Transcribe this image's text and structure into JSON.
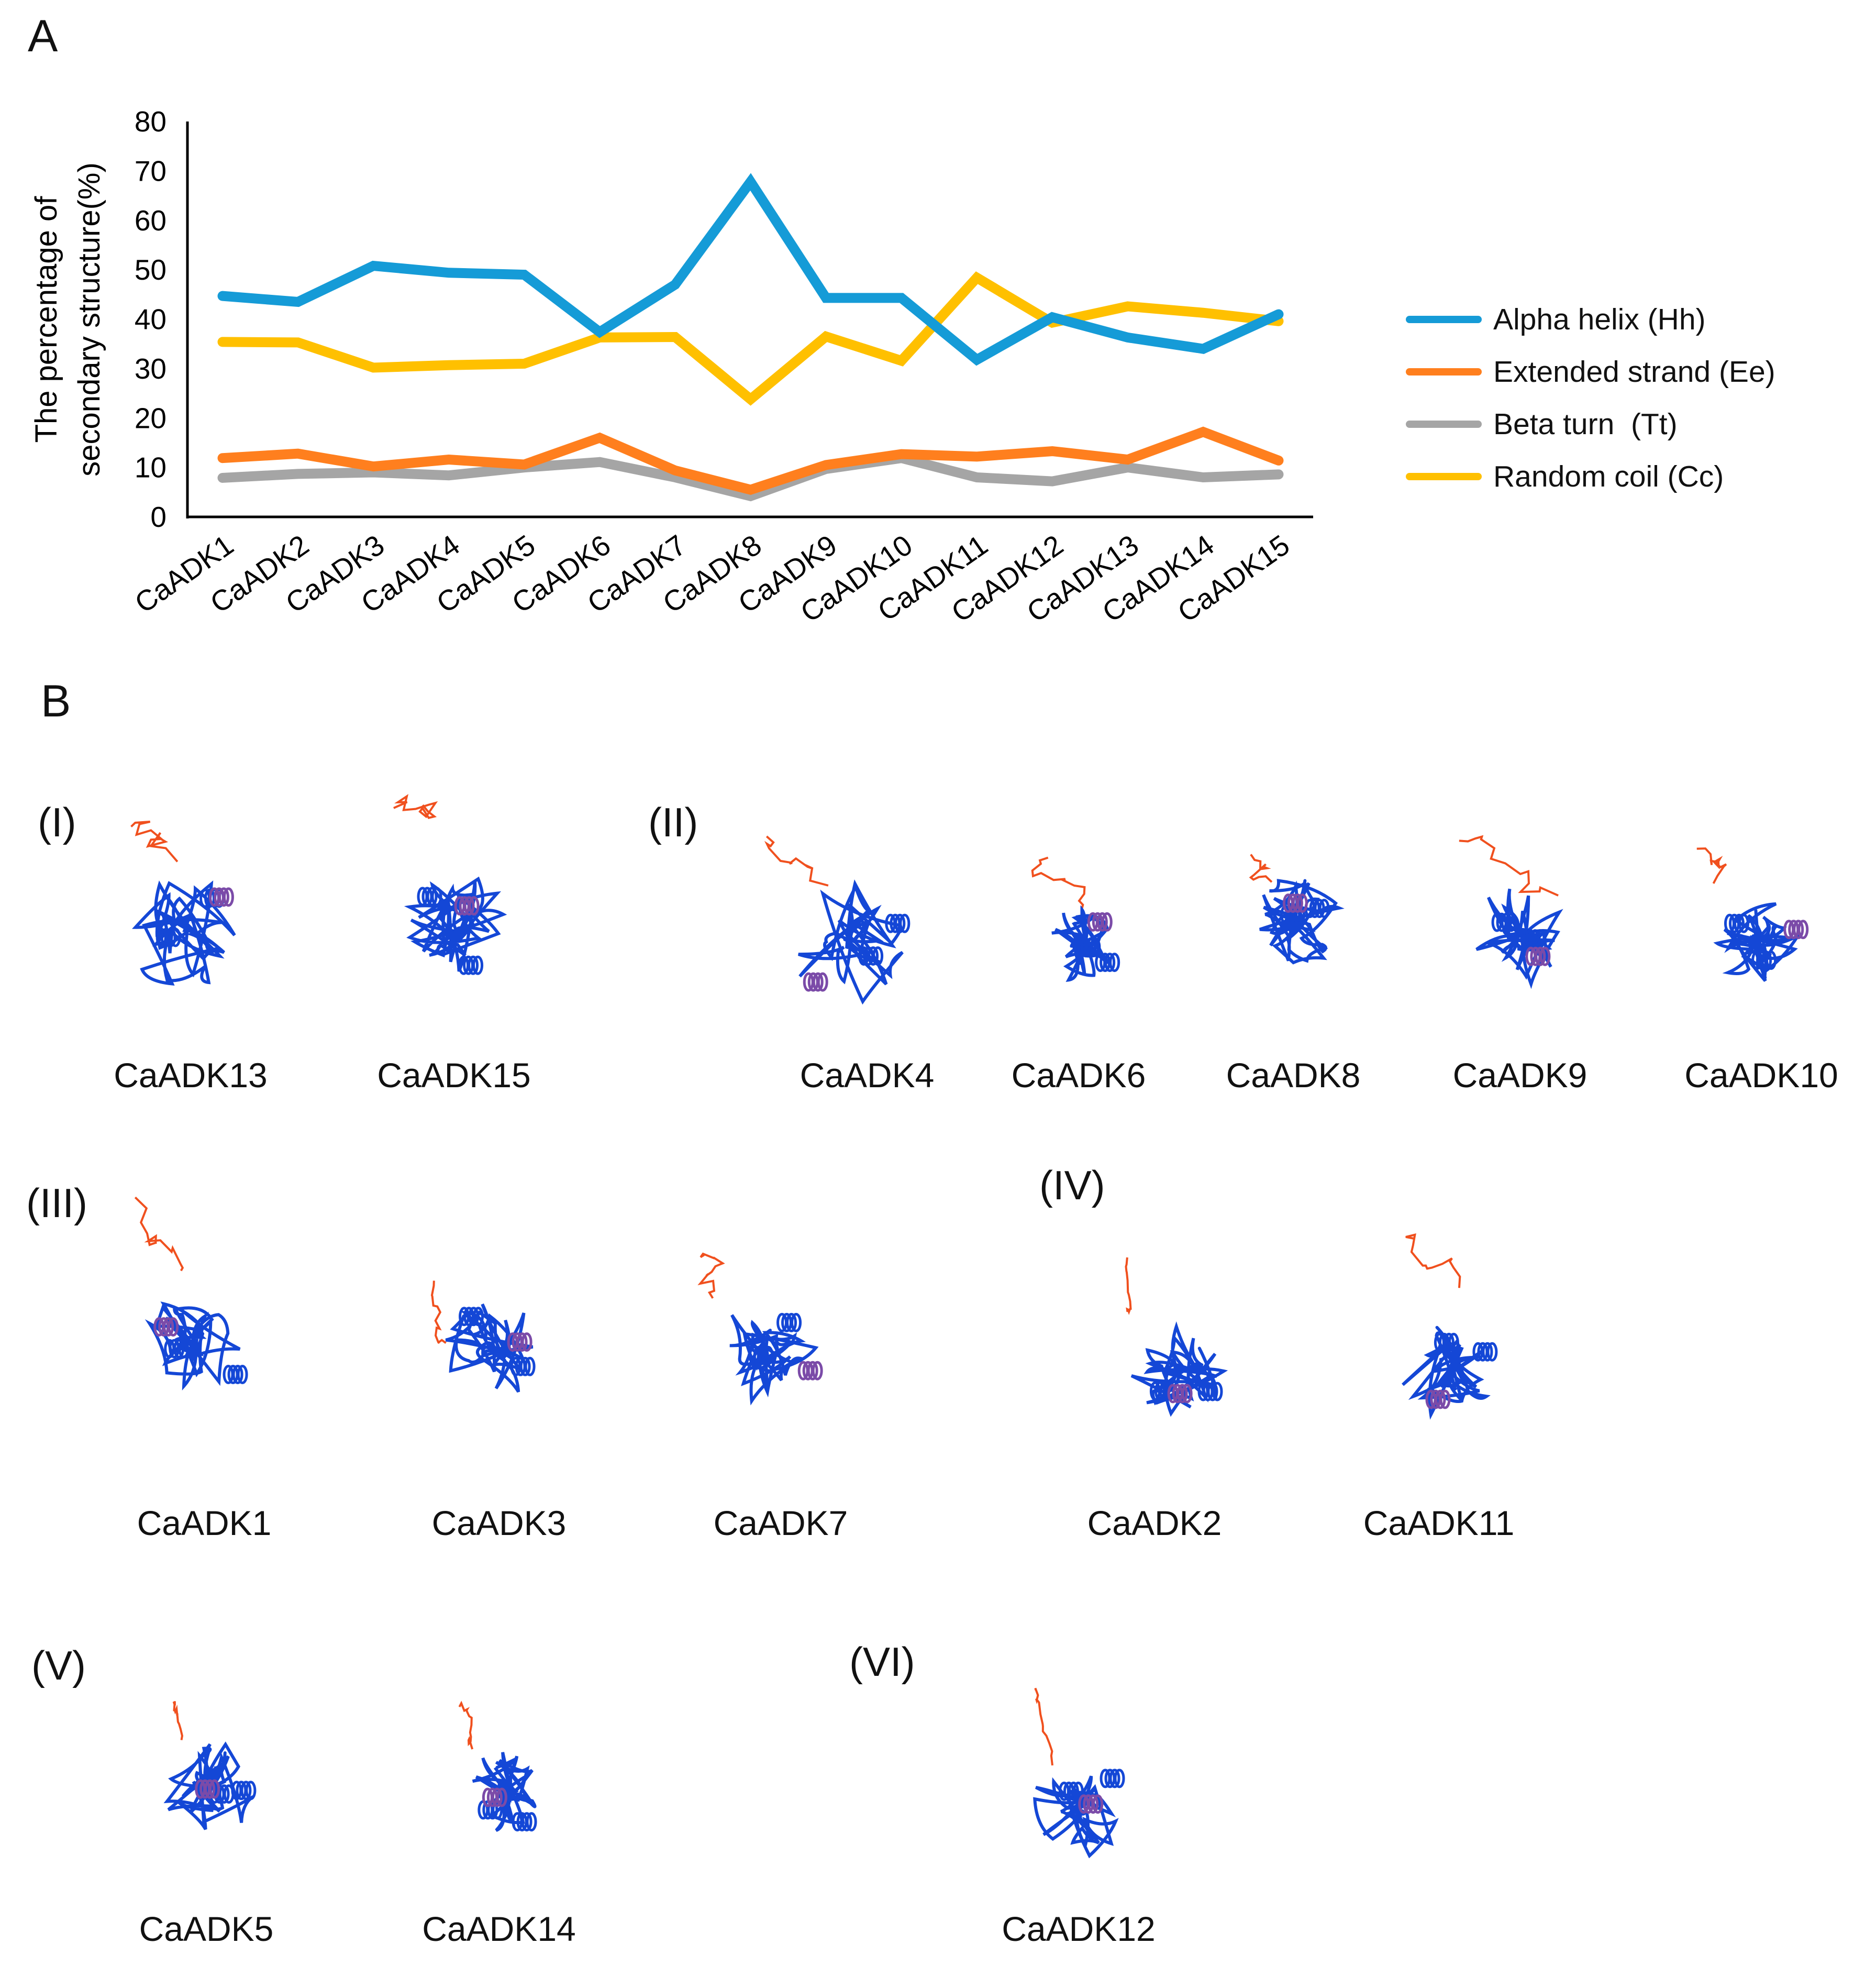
{
  "panel_a_label": "A",
  "panel_b_label": "B",
  "chart_data": {
    "type": "line",
    "title": "",
    "xlabel": "",
    "ylabel": [
      "The percentage of",
      "secondary structure(%)"
    ],
    "ylim": [
      0,
      80
    ],
    "yticks": [
      0,
      10,
      20,
      30,
      40,
      50,
      60,
      70,
      80
    ],
    "grid": false,
    "legend_position": "right",
    "categories": [
      "CaADK1",
      "CaADK2",
      "CaADK3",
      "CaADK4",
      "CaADK5",
      "CaADK6",
      "CaADK7",
      "CaADK8",
      "CaADK9",
      "CaADK10",
      "CaADK11",
      "CaADK12",
      "CaADK13",
      "CaADK14",
      "CaADK15"
    ],
    "series": [
      {
        "name": "Alpha helix (Hh)",
        "color": "#159BD7",
        "values": [
          44.7,
          43.5,
          50.8,
          49.4,
          49.0,
          37.4,
          47.0,
          67.8,
          44.3,
          44.3,
          31.8,
          40.4,
          36.3,
          34.0,
          41.0
        ]
      },
      {
        "name": "Extended strand (Ee)",
        "color": "#FF7F1E",
        "values": [
          11.9,
          12.8,
          10.2,
          11.6,
          10.6,
          16.0,
          9.4,
          5.5,
          10.5,
          12.7,
          12.2,
          13.3,
          11.6,
          17.2,
          11.4
        ]
      },
      {
        "name": "Beta turn  (Tt)",
        "color": "#A5A5A5",
        "values": [
          7.9,
          8.7,
          9.0,
          8.4,
          10.0,
          11.1,
          8.0,
          4.2,
          9.7,
          11.9,
          8.0,
          7.2,
          10.0,
          8.0,
          8.6
        ]
      },
      {
        "name": "Random coil (Cc)",
        "color": "#FFC000",
        "values": [
          35.4,
          35.3,
          30.2,
          30.7,
          31.0,
          36.3,
          36.4,
          23.8,
          36.5,
          31.6,
          48.4,
          39.3,
          42.6,
          41.3,
          39.6
        ]
      }
    ]
  },
  "groups": [
    {
      "label": "(I)",
      "proteins": [
        "CaADK13",
        "CaADK15"
      ]
    },
    {
      "label": "(II)",
      "proteins": [
        "CaADK4",
        "CaADK6",
        "CaADK8",
        "CaADK9",
        "CaADK10"
      ]
    },
    {
      "label": "(III)",
      "proteins": [
        "CaADK1",
        "CaADK3",
        "CaADK7"
      ]
    },
    {
      "label": "(IV)",
      "proteins": [
        "CaADK2",
        "CaADK11"
      ]
    },
    {
      "label": "(V)",
      "proteins": [
        "CaADK5",
        "CaADK14"
      ]
    },
    {
      "label": "(VI)",
      "proteins": [
        "CaADK12"
      ]
    }
  ],
  "structure_colors": {
    "ordered": "#1447D6",
    "disordered": "#F0501E",
    "intermediate": "#7B4BA8"
  }
}
